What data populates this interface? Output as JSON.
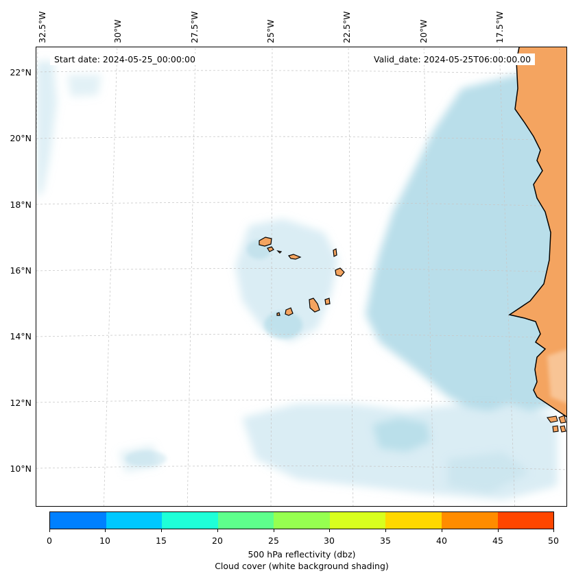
{
  "map": {
    "start_date": "Start date: 2024-05-25_00:00:00",
    "valid_date": "Valid_date: 2024-05-25T06:00:00.00",
    "lon_labels": [
      "32.5°W",
      "30°W",
      "27.5°W",
      "25°W",
      "22.5°W",
      "20°W",
      "17.5°W"
    ],
    "lat_labels": [
      "22°N",
      "20°N",
      "18°N",
      "16°N",
      "14°N",
      "12°N",
      "10°N"
    ],
    "colors": {
      "land": "#f4a460",
      "cloud": "#add8e6",
      "coastline": "#000000",
      "gridline": "#c8c8c8"
    }
  },
  "colorbar": {
    "ticks": [
      "0",
      "10",
      "15",
      "20",
      "25",
      "30",
      "35",
      "40",
      "45",
      "50"
    ],
    "colors": [
      "#0080ff",
      "#00c8ff",
      "#1effd8",
      "#5eff8c",
      "#96ff50",
      "#d8ff1e",
      "#ffd800",
      "#ff8c00",
      "#ff4600"
    ],
    "label_line1": "500 hPa reflectivity (dbz)",
    "label_line2": "Cloud cover (white background shading)"
  }
}
